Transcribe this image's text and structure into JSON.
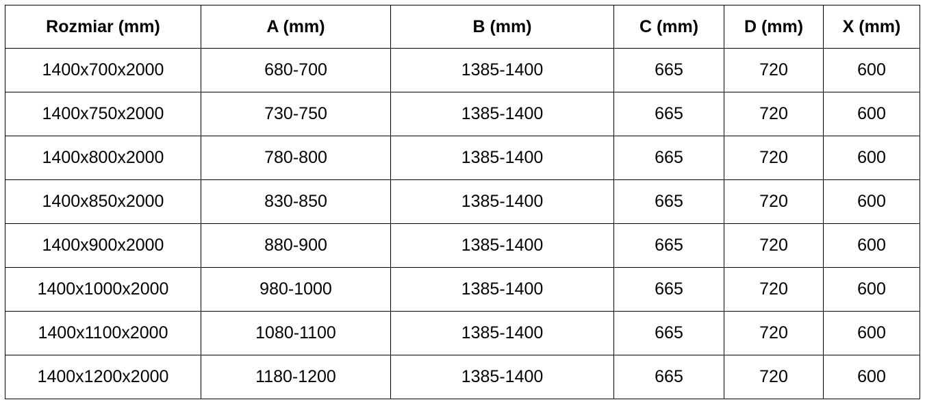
{
  "table": {
    "header": [
      "Rozmiar (mm)",
      "A (mm)",
      "B (mm)",
      "C (mm)",
      "D (mm)",
      "X (mm)"
    ],
    "rows": [
      [
        "1400x700x2000",
        "680-700",
        "1385-1400",
        "665",
        "720",
        "600"
      ],
      [
        "1400x750x2000",
        "730-750",
        "1385-1400",
        "665",
        "720",
        "600"
      ],
      [
        "1400x800x2000",
        "780-800",
        "1385-1400",
        "665",
        "720",
        "600"
      ],
      [
        "1400x850x2000",
        "830-850",
        "1385-1400",
        "665",
        "720",
        "600"
      ],
      [
        "1400x900x2000",
        "880-900",
        "1385-1400",
        "665",
        "720",
        "600"
      ],
      [
        "1400x1000x2000",
        "980-1000",
        "1385-1400",
        "665",
        "720",
        "600"
      ],
      [
        "1400x1100x2000",
        "1080-1100",
        "1385-1400",
        "665",
        "720",
        "600"
      ],
      [
        "1400x1200x2000",
        "1180-1200",
        "1385-1400",
        "665",
        "720",
        "600"
      ]
    ]
  }
}
